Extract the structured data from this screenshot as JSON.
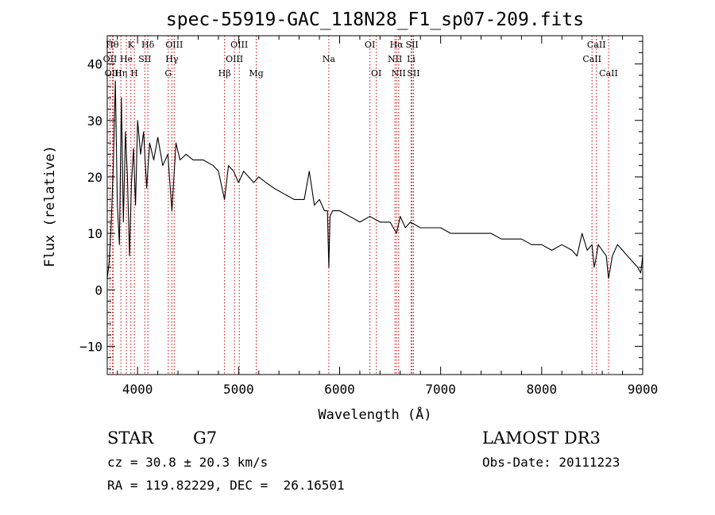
{
  "chart_data": {
    "type": "line",
    "title": "spec-55919-GAC_118N28_F1_sp07-209.fits",
    "xlabel": "Wavelength (Å)",
    "ylabel": "Flux (relative)",
    "xlim": [
      3700,
      9000
    ],
    "ylim": [
      -15,
      45
    ],
    "xticks": [
      4000,
      5000,
      6000,
      7000,
      8000,
      9000
    ],
    "xtick_labels": [
      "4000",
      "5000",
      "6000",
      "7000",
      "8000",
      "9000"
    ],
    "yticks": [
      -10,
      0,
      10,
      20,
      30,
      40
    ],
    "ytick_labels": [
      "−10",
      "0",
      "10",
      "20",
      "30",
      "40"
    ],
    "grid": false,
    "series": [
      {
        "name": "flux",
        "color": "#000000",
        "x": [
          3700,
          3720,
          3740,
          3760,
          3780,
          3800,
          3820,
          3840,
          3860,
          3880,
          3900,
          3920,
          3940,
          3960,
          3980,
          4000,
          4030,
          4060,
          4090,
          4120,
          4160,
          4200,
          4250,
          4300,
          4340,
          4380,
          4420,
          4480,
          4550,
          4650,
          4750,
          4800,
          4861,
          4900,
          4950,
          5000,
          5050,
          5100,
          5150,
          5200,
          5270,
          5350,
          5450,
          5550,
          5650,
          5700,
          5750,
          5800,
          5850,
          5880,
          5893,
          5905,
          5930,
          6000,
          6100,
          6200,
          6300,
          6400,
          6500,
          6563,
          6600,
          6650,
          6700,
          6800,
          6900,
          7000,
          7100,
          7200,
          7300,
          7400,
          7500,
          7600,
          7700,
          7800,
          7900,
          8000,
          8100,
          8200,
          8300,
          8350,
          8400,
          8450,
          8498,
          8520,
          8542,
          8560,
          8600,
          8640,
          8662,
          8700,
          8750,
          8800,
          8850,
          8900,
          8950,
          8980,
          9000
        ],
        "values": [
          2,
          5,
          12,
          22,
          37,
          15,
          8,
          34,
          12,
          28,
          20,
          6,
          19,
          25,
          15,
          30,
          24,
          28,
          18,
          26,
          23,
          27,
          22,
          24,
          14,
          26,
          23,
          24,
          23,
          23,
          22,
          21,
          16,
          22,
          21,
          19,
          21,
          20,
          19,
          20,
          19,
          18,
          17,
          16,
          16,
          21,
          15,
          16,
          14,
          14,
          4,
          13,
          14,
          14,
          13,
          12,
          13,
          12,
          12,
          10,
          13,
          11,
          12,
          11,
          11,
          11,
          10,
          10,
          10,
          10,
          10,
          9,
          9,
          9,
          8,
          8,
          7,
          8,
          7,
          6,
          10,
          7,
          8,
          4,
          6,
          8,
          7,
          6,
          2,
          6,
          8,
          7,
          6,
          5,
          4,
          3,
          6
        ]
      }
    ],
    "line_markers": [
      {
        "label": "Hθ",
        "wavelength": 3750,
        "row": 0
      },
      {
        "label": "K",
        "wavelength": 3934,
        "row": 0
      },
      {
        "label": "Hδ",
        "wavelength": 4102,
        "row": 0
      },
      {
        "label": "OIII",
        "wavelength": 4363,
        "row": 0
      },
      {
        "label": "OIII",
        "wavelength": 5007,
        "row": 0
      },
      {
        "label": "OI",
        "wavelength": 6300,
        "row": 0
      },
      {
        "label": "Hα",
        "wavelength": 6563,
        "row": 0
      },
      {
        "label": "SII",
        "wavelength": 6717,
        "row": 0
      },
      {
        "label": "CaII",
        "wavelength": 8542,
        "row": 0
      },
      {
        "label": "OII",
        "wavelength": 3727,
        "row": 1
      },
      {
        "label": "He",
        "wavelength": 3889,
        "row": 1
      },
      {
        "label": "SII",
        "wavelength": 4072,
        "row": 1
      },
      {
        "label": "Hγ",
        "wavelength": 4340,
        "row": 1
      },
      {
        "label": "OIII",
        "wavelength": 4959,
        "row": 1
      },
      {
        "label": "Na",
        "wavelength": 5893,
        "row": 1
      },
      {
        "label": "NII",
        "wavelength": 6548,
        "row": 1
      },
      {
        "label": "Li",
        "wavelength": 6708,
        "row": 1
      },
      {
        "label": "CaII",
        "wavelength": 8498,
        "row": 1
      },
      {
        "label": "OIII",
        "wavelength": 3760,
        "row": 2
      },
      {
        "label": "Hη",
        "wavelength": 3835,
        "row": 2
      },
      {
        "label": "H",
        "wavelength": 3968,
        "row": 2
      },
      {
        "label": "G",
        "wavelength": 4304,
        "row": 2
      },
      {
        "label": "Hβ",
        "wavelength": 4861,
        "row": 2
      },
      {
        "label": "Mg",
        "wavelength": 5175,
        "row": 2
      },
      {
        "label": "OI",
        "wavelength": 6363,
        "row": 2
      },
      {
        "label": "NII",
        "wavelength": 6584,
        "row": 2
      },
      {
        "label": "SII",
        "wavelength": 6731,
        "row": 2
      },
      {
        "label": "CaII",
        "wavelength": 8662,
        "row": 2
      }
    ]
  },
  "info": {
    "object_class": "STAR",
    "subclass": "G7",
    "survey": "LAMOST DR3",
    "redshift_line": "cz = 30.8 ± 20.3 km/s",
    "obs_date_line": "Obs-Date: 20111223",
    "coords_line": "RA = 119.82229, DEC =  26.16501"
  },
  "colors": {
    "axis": "#000000",
    "spectrum": "#000000",
    "marker_line": "#cc0000",
    "background": "#ffffff"
  }
}
